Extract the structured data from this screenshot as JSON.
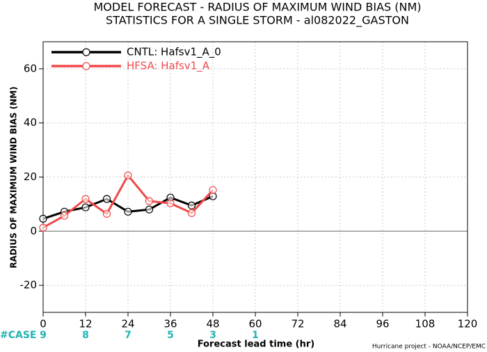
{
  "chart_data": {
    "type": "line",
    "title": "MODEL FORECAST - RADIUS OF MAXIMUM WIND BIAS (NM)",
    "subtitle": "STATISTICS FOR A SINGLE STORM - al082022_GASTON",
    "x_label": "Forecast lead time (hr)",
    "y_label": "RADIUS OF MAXIMUM WIND BIAS (NM)",
    "credit": "Hurricane project - NOAA/NCEP/EMC",
    "x": [
      0,
      6,
      12,
      18,
      24,
      30,
      36,
      42,
      48
    ],
    "series": [
      {
        "name": "CNTL: Hafsv1_A_0",
        "color": "#000000",
        "values": [
          4.6,
          7.2,
          8.8,
          11.9,
          7.2,
          8.0,
          12.4,
          9.5,
          12.9
        ]
      },
      {
        "name": "HFSA: Hafsv1_A",
        "color": "#f04848",
        "values": [
          1.3,
          5.7,
          11.9,
          6.4,
          20.6,
          11.1,
          10.3,
          6.7,
          15.2
        ]
      }
    ],
    "xlim": [
      0,
      120
    ],
    "xticks": [
      0,
      12,
      24,
      36,
      48,
      60,
      72,
      84,
      96,
      108,
      120
    ],
    "ylim": [
      -30,
      70
    ],
    "yticks": [
      -20,
      0,
      20,
      40,
      60
    ],
    "grid": true,
    "legend": "top-left",
    "cases": {
      "label": "#CASE",
      "color": "#20b2b2",
      "x": [
        0,
        12,
        24,
        36,
        48,
        60
      ],
      "values": [
        9,
        8,
        7,
        5,
        3,
        1
      ]
    }
  }
}
